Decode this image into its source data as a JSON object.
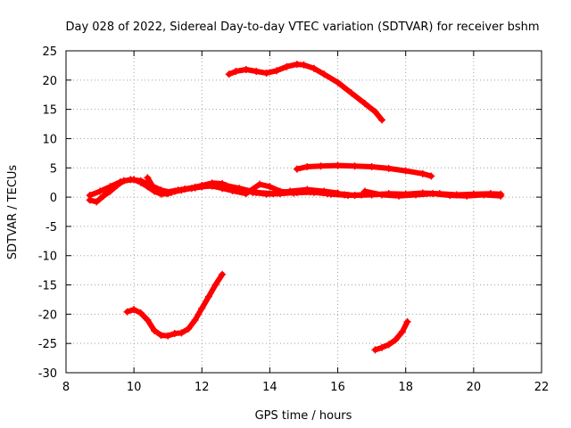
{
  "chart_data": {
    "type": "scatter",
    "title": "Day 028 of 2022, Sidereal Day-to-day VTEC variation (SDTVAR) for receiver bshm",
    "xlabel": "GPS time / hours",
    "ylabel": "SDTVAR / TECUs",
    "xlim": [
      8,
      22
    ],
    "ylim": [
      -30,
      25
    ],
    "xticks": [
      8,
      10,
      12,
      14,
      16,
      18,
      20,
      22
    ],
    "yticks": [
      25,
      20,
      15,
      10,
      5,
      0,
      -5,
      -10,
      -15,
      -20,
      -25,
      -30
    ],
    "grid": true,
    "series_color": "#ff0000",
    "series": [
      {
        "name": "arc-upper",
        "points": [
          [
            12.8,
            21.0
          ],
          [
            13.0,
            21.5
          ],
          [
            13.3,
            21.8
          ],
          [
            13.6,
            21.5
          ],
          [
            13.9,
            21.2
          ],
          [
            14.2,
            21.6
          ],
          [
            14.5,
            22.3
          ],
          [
            14.8,
            22.7
          ],
          [
            15.0,
            22.6
          ],
          [
            15.3,
            22.0
          ],
          [
            15.6,
            21.0
          ],
          [
            16.0,
            19.6
          ],
          [
            16.4,
            17.8
          ],
          [
            16.8,
            16.0
          ],
          [
            17.1,
            14.6
          ],
          [
            17.3,
            13.2
          ]
        ]
      },
      {
        "name": "arc-plus5",
        "points": [
          [
            14.8,
            4.8
          ],
          [
            15.1,
            5.2
          ],
          [
            15.5,
            5.3
          ],
          [
            16.0,
            5.4
          ],
          [
            16.5,
            5.3
          ],
          [
            17.0,
            5.2
          ],
          [
            17.5,
            4.9
          ],
          [
            18.0,
            4.5
          ],
          [
            18.5,
            4.0
          ],
          [
            18.75,
            3.6
          ]
        ]
      },
      {
        "name": "arc-near-zero-a",
        "points": [
          [
            8.7,
            -0.5
          ],
          [
            8.9,
            -0.8
          ],
          [
            9.1,
            0.2
          ],
          [
            9.3,
            1.0
          ],
          [
            9.5,
            2.0
          ],
          [
            9.7,
            2.8
          ],
          [
            10.0,
            3.0
          ],
          [
            10.2,
            2.5
          ],
          [
            10.4,
            1.8
          ],
          [
            10.6,
            1.0
          ],
          [
            10.8,
            0.5
          ],
          [
            11.0,
            0.6
          ],
          [
            11.2,
            1.0
          ],
          [
            11.5,
            1.4
          ],
          [
            11.8,
            1.7
          ],
          [
            12.0,
            2.0
          ],
          [
            12.3,
            2.4
          ],
          [
            12.6,
            2.3
          ],
          [
            12.9,
            1.6
          ],
          [
            13.2,
            1.2
          ],
          [
            13.5,
            0.8
          ],
          [
            13.9,
            0.5
          ],
          [
            14.3,
            0.6
          ],
          [
            14.8,
            0.8
          ],
          [
            15.3,
            0.8
          ],
          [
            15.8,
            0.5
          ],
          [
            16.3,
            0.3
          ],
          [
            16.7,
            0.4
          ]
        ]
      },
      {
        "name": "arc-near-zero-b",
        "points": [
          [
            8.7,
            0.3
          ],
          [
            9.0,
            1.0
          ],
          [
            9.3,
            1.8
          ],
          [
            9.6,
            2.6
          ],
          [
            9.9,
            3.0
          ],
          [
            10.2,
            2.8
          ],
          [
            10.5,
            2.0
          ],
          [
            10.8,
            1.2
          ],
          [
            11.1,
            0.8
          ],
          [
            11.4,
            1.2
          ],
          [
            11.7,
            1.5
          ],
          [
            12.0,
            1.8
          ],
          [
            12.3,
            1.9
          ],
          [
            12.6,
            1.5
          ],
          [
            12.9,
            1.1
          ],
          [
            13.3,
            0.6
          ],
          [
            13.7,
            2.2
          ],
          [
            14.0,
            1.8
          ],
          [
            14.3,
            1.0
          ],
          [
            14.7,
            0.7
          ],
          [
            15.2,
            0.9
          ],
          [
            15.7,
            0.6
          ],
          [
            16.2,
            0.4
          ]
        ]
      },
      {
        "name": "arc-near-zero-c",
        "points": [
          [
            10.4,
            3.3
          ],
          [
            10.6,
            1.4
          ],
          [
            10.9,
            0.8
          ],
          [
            11.3,
            1.2
          ],
          [
            11.8,
            1.6
          ],
          [
            12.3,
            2.0
          ],
          [
            12.7,
            2.0
          ],
          [
            13.1,
            1.5
          ],
          [
            13.6,
            0.8
          ],
          [
            14.1,
            0.6
          ],
          [
            14.6,
            1.0
          ],
          [
            15.1,
            1.3
          ],
          [
            15.6,
            1.0
          ],
          [
            16.0,
            0.7
          ]
        ]
      },
      {
        "name": "arc-near-zero-d",
        "points": [
          [
            16.0,
            0.6
          ],
          [
            16.5,
            0.3
          ],
          [
            17.0,
            0.4
          ],
          [
            17.5,
            0.6
          ],
          [
            18.0,
            0.5
          ],
          [
            18.5,
            0.7
          ],
          [
            19.0,
            0.6
          ],
          [
            19.5,
            0.4
          ],
          [
            20.0,
            0.5
          ],
          [
            20.5,
            0.6
          ],
          [
            20.8,
            0.5
          ]
        ]
      },
      {
        "name": "arc-near-zero-e",
        "points": [
          [
            16.8,
            1.0
          ],
          [
            17.3,
            0.4
          ],
          [
            17.8,
            0.2
          ],
          [
            18.3,
            0.4
          ],
          [
            18.8,
            0.6
          ],
          [
            19.3,
            0.3
          ],
          [
            19.8,
            0.2
          ],
          [
            20.3,
            0.4
          ],
          [
            20.8,
            0.2
          ]
        ]
      },
      {
        "name": "arc-lower-left",
        "points": [
          [
            9.8,
            -19.6
          ],
          [
            10.0,
            -19.2
          ],
          [
            10.2,
            -19.8
          ],
          [
            10.4,
            -21.0
          ],
          [
            10.6,
            -22.8
          ],
          [
            10.8,
            -23.6
          ],
          [
            11.0,
            -23.7
          ],
          [
            11.2,
            -23.3
          ],
          [
            11.4,
            -23.2
          ],
          [
            11.6,
            -22.5
          ],
          [
            11.8,
            -21.0
          ],
          [
            12.0,
            -19.0
          ],
          [
            12.2,
            -17.0
          ],
          [
            12.4,
            -15.0
          ],
          [
            12.6,
            -13.2
          ]
        ]
      },
      {
        "name": "arc-lower-right",
        "points": [
          [
            17.1,
            -26.1
          ],
          [
            17.3,
            -25.7
          ],
          [
            17.5,
            -25.2
          ],
          [
            17.7,
            -24.4
          ],
          [
            17.9,
            -23.0
          ],
          [
            18.05,
            -21.3
          ]
        ]
      }
    ]
  }
}
